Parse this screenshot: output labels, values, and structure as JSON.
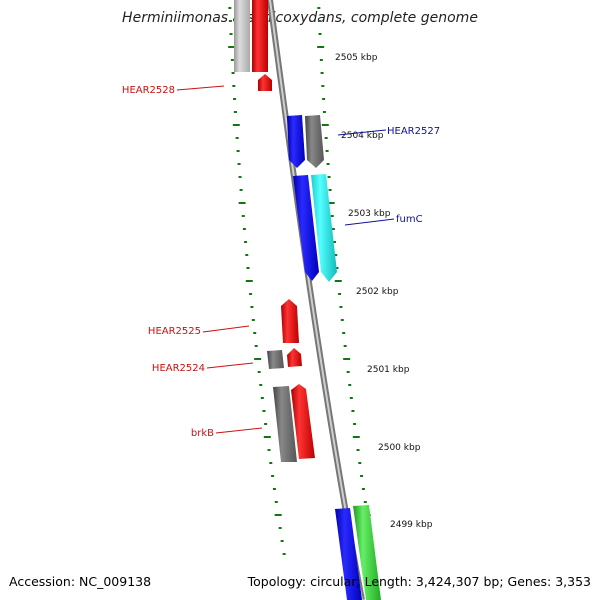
{
  "title": "Herminiimonas arsenicoxydans, complete genome",
  "footer": {
    "accession": "Accession: NC_009138",
    "summary": "Topology: circular; Length: 3,424,307 bp; Genes: 3,353"
  },
  "colors": {
    "red": "#ee1111",
    "blue": "#1111ee",
    "cyan": "#11eeee",
    "gray": "#666666",
    "lightgray": "#bbbbbb",
    "green": "#33cc33",
    "tick": "#117711",
    "label_red": "#cc1111",
    "label_blue": "#111199"
  },
  "kbp_ticks": [
    {
      "label": "2505 kbp"
    },
    {
      "label": "2504 kbp"
    },
    {
      "label": "2503 kbp"
    },
    {
      "label": "2502 kbp"
    },
    {
      "label": "2501 kbp"
    },
    {
      "label": "2500 kbp"
    },
    {
      "label": "2499 kbp"
    }
  ],
  "gene_labels": [
    {
      "name": "HEAR2528",
      "color": "red"
    },
    {
      "name": "HEAR2527",
      "color": "blue"
    },
    {
      "name": "fumC",
      "color": "blue"
    },
    {
      "name": "HEAR2525",
      "color": "red"
    },
    {
      "name": "HEAR2524",
      "color": "red"
    },
    {
      "name": "brkB",
      "color": "red"
    }
  ]
}
